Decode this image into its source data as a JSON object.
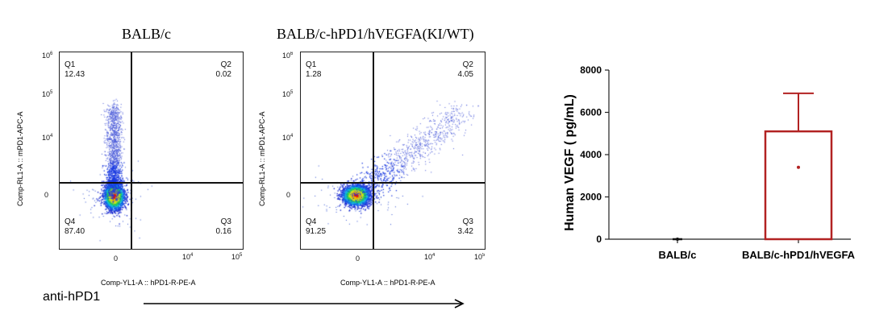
{
  "flow_panels": [
    {
      "title": "BALB/c",
      "quadrants": {
        "Q1": {
          "label": "Q1",
          "value": "12.43"
        },
        "Q2": {
          "label": "Q2",
          "value": "0.02"
        },
        "Q3": {
          "label": "Q3",
          "value": "0.16"
        },
        "Q4": {
          "label": "Q4",
          "value": "87.40"
        }
      },
      "y_axis_label": "Comp-RL1-A :: mPD1-APC-A",
      "x_axis_label": "Comp-YL1-A :: hPD1-R-PE-A",
      "y_ticks": [
        {
          "base": "10",
          "exp": "6"
        },
        {
          "base": "10",
          "exp": "5"
        },
        {
          "base": "10",
          "exp": "4"
        },
        {
          "base": "0",
          "exp": ""
        }
      ],
      "x_ticks": [
        {
          "base": "0",
          "exp": ""
        },
        {
          "base": "10",
          "exp": "4"
        },
        {
          "base": "10",
          "exp": "5"
        }
      ]
    },
    {
      "title": "BALB/c-hPD1/hVEGFA(KI/WT)",
      "quadrants": {
        "Q1": {
          "label": "Q1",
          "value": "1.28"
        },
        "Q2": {
          "label": "Q2",
          "value": "4.05"
        },
        "Q3": {
          "label": "Q3",
          "value": "3.42"
        },
        "Q4": {
          "label": "Q4",
          "value": "91.25"
        }
      },
      "y_axis_label": "Comp-RL1-A :: mPD1-APC-A",
      "x_axis_label": "Comp-YL1-A :: hPD1-R-PE-A",
      "y_ticks": [
        {
          "base": "10",
          "exp": "6"
        },
        {
          "base": "10",
          "exp": "5"
        },
        {
          "base": "10",
          "exp": "4"
        },
        {
          "base": "0",
          "exp": ""
        }
      ],
      "x_ticks": [
        {
          "base": "0",
          "exp": ""
        },
        {
          "base": "10",
          "exp": "4"
        },
        {
          "base": "10",
          "exp": "5"
        }
      ]
    }
  ],
  "arrow_label": "anti-hPD1",
  "chart_data": {
    "type": "bar",
    "categories": [
      "BALB/c",
      "BALB/c-hPD1/hVEGFA"
    ],
    "values": [
      0,
      5100
    ],
    "error_upper": [
      0,
      6900
    ],
    "points": [
      [
        0
      ],
      [
        3400
      ]
    ],
    "ylabel": "Human VEGF ( pg/mL)",
    "xlabel": "",
    "ylim": [
      0,
      8000
    ],
    "yticks": [
      0,
      2000,
      4000,
      6000,
      8000
    ],
    "bar_color": "#b22222",
    "grid": false
  }
}
